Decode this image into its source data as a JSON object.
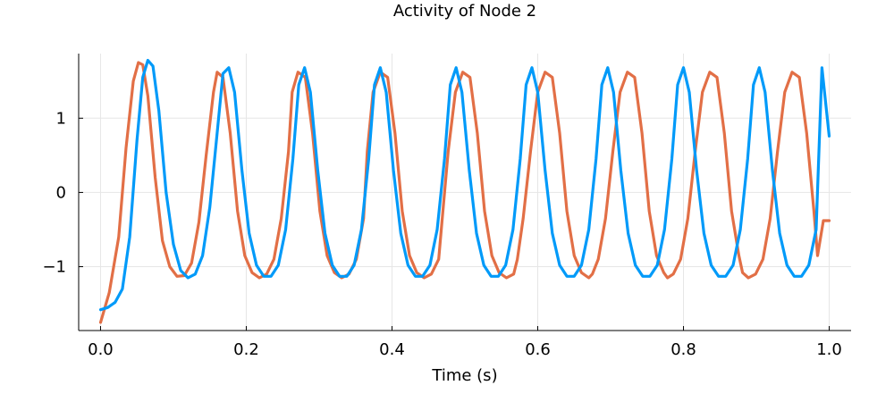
{
  "chart_data": {
    "type": "line",
    "title": "Activity of Node 2",
    "xlabel": "Time (s)",
    "ylabel": "",
    "xlim": [
      -0.03,
      1.03
    ],
    "ylim": [
      -1.86,
      1.87
    ],
    "xticks": [
      0.0,
      0.2,
      0.4,
      0.6,
      0.8,
      1.0
    ],
    "xtick_labels": [
      "0.0",
      "0.2",
      "0.4",
      "0.6",
      "0.8",
      "1.0"
    ],
    "yticks": [
      -1,
      0,
      1
    ],
    "ytick_labels": [
      "−1",
      "0",
      "1"
    ],
    "grid": true,
    "legend": "none",
    "series": [
      {
        "color": "#e26f46",
        "x": [
          0.0,
          0.012,
          0.025,
          0.035,
          0.045,
          0.052,
          0.058,
          0.065,
          0.075,
          0.085,
          0.095,
          0.105,
          0.115,
          0.125,
          0.135,
          0.145,
          0.155,
          0.16,
          0.168,
          0.178,
          0.188,
          0.198,
          0.208,
          0.218,
          0.228,
          0.238,
          0.248,
          0.258,
          0.263,
          0.271,
          0.281,
          0.291,
          0.301,
          0.311,
          0.321,
          0.331,
          0.341,
          0.351,
          0.361,
          0.366,
          0.374,
          0.384,
          0.394,
          0.404,
          0.414,
          0.424,
          0.434,
          0.444,
          0.454,
          0.464,
          0.469,
          0.477,
          0.487,
          0.497,
          0.507,
          0.517,
          0.527,
          0.537,
          0.547,
          0.557,
          0.567,
          0.572,
          0.58,
          0.59,
          0.6,
          0.61,
          0.62,
          0.63,
          0.64,
          0.65,
          0.66,
          0.67,
          0.675,
          0.683,
          0.693,
          0.703,
          0.713,
          0.723,
          0.733,
          0.743,
          0.753,
          0.763,
          0.773,
          0.778,
          0.786,
          0.796,
          0.806,
          0.816,
          0.826,
          0.836,
          0.846,
          0.856,
          0.866,
          0.876,
          0.881,
          0.889,
          0.899,
          0.909,
          0.919,
          0.929,
          0.939,
          0.949,
          0.959,
          0.969,
          0.979,
          0.984,
          0.992,
          1.0
        ],
        "y": [
          -1.75,
          -1.35,
          -0.6,
          0.6,
          1.5,
          1.75,
          1.72,
          1.3,
          0.2,
          -0.65,
          -1.0,
          -1.13,
          -1.12,
          -0.95,
          -0.4,
          0.5,
          1.35,
          1.62,
          1.55,
          0.8,
          -0.25,
          -0.85,
          -1.08,
          -1.15,
          -1.1,
          -0.9,
          -0.35,
          0.55,
          1.35,
          1.62,
          1.55,
          0.8,
          -0.25,
          -0.85,
          -1.08,
          -1.15,
          -1.1,
          -0.9,
          -0.35,
          0.55,
          1.35,
          1.62,
          1.55,
          0.8,
          -0.25,
          -0.85,
          -1.08,
          -1.15,
          -1.1,
          -0.9,
          -0.35,
          0.55,
          1.35,
          1.62,
          1.55,
          0.8,
          -0.25,
          -0.85,
          -1.08,
          -1.15,
          -1.1,
          -0.9,
          -0.35,
          0.55,
          1.35,
          1.62,
          1.55,
          0.8,
          -0.25,
          -0.85,
          -1.08,
          -1.15,
          -1.1,
          -0.9,
          -0.35,
          0.55,
          1.35,
          1.62,
          1.55,
          0.8,
          -0.25,
          -0.85,
          -1.08,
          -1.15,
          -1.1,
          -0.9,
          -0.35,
          0.55,
          1.35,
          1.62,
          1.55,
          0.8,
          -0.25,
          -0.85,
          -1.08,
          -1.15,
          -1.1,
          -0.9,
          -0.35,
          0.55,
          1.35,
          1.62,
          1.55,
          0.8,
          -0.25,
          -0.85,
          -0.38,
          -0.38
        ]
      },
      {
        "color": "#009af9",
        "x": [
          0.0,
          0.01,
          0.02,
          0.03,
          0.04,
          0.05,
          0.058,
          0.065,
          0.072,
          0.08,
          0.09,
          0.1,
          0.11,
          0.12,
          0.13,
          0.14,
          0.15,
          0.16,
          0.168,
          0.176,
          0.184,
          0.194,
          0.204,
          0.214,
          0.224,
          0.234,
          0.244,
          0.254,
          0.264,
          0.272,
          0.28,
          0.288,
          0.298,
          0.308,
          0.318,
          0.328,
          0.338,
          0.348,
          0.358,
          0.368,
          0.376,
          0.384,
          0.392,
          0.402,
          0.412,
          0.422,
          0.432,
          0.442,
          0.452,
          0.462,
          0.472,
          0.48,
          0.488,
          0.496,
          0.506,
          0.516,
          0.526,
          0.536,
          0.546,
          0.556,
          0.566,
          0.576,
          0.584,
          0.592,
          0.6,
          0.61,
          0.62,
          0.63,
          0.64,
          0.65,
          0.66,
          0.67,
          0.68,
          0.688,
          0.696,
          0.704,
          0.714,
          0.724,
          0.734,
          0.744,
          0.754,
          0.764,
          0.774,
          0.784,
          0.792,
          0.8,
          0.808,
          0.818,
          0.828,
          0.838,
          0.848,
          0.858,
          0.868,
          0.878,
          0.888,
          0.896,
          0.904,
          0.912,
          0.922,
          0.932,
          0.942,
          0.952,
          0.962,
          0.972,
          0.982,
          0.99,
          1.0
        ],
        "y": [
          -1.58,
          -1.55,
          -1.48,
          -1.3,
          -0.6,
          0.7,
          1.55,
          1.78,
          1.7,
          1.1,
          0.0,
          -0.7,
          -1.05,
          -1.15,
          -1.1,
          -0.85,
          -0.2,
          0.8,
          1.6,
          1.68,
          1.35,
          0.3,
          -0.55,
          -0.98,
          -1.13,
          -1.13,
          -0.98,
          -0.5,
          0.45,
          1.45,
          1.68,
          1.35,
          0.3,
          -0.55,
          -0.98,
          -1.13,
          -1.13,
          -0.98,
          -0.5,
          0.45,
          1.45,
          1.68,
          1.35,
          0.3,
          -0.55,
          -0.98,
          -1.13,
          -1.13,
          -0.98,
          -0.5,
          0.45,
          1.45,
          1.68,
          1.35,
          0.3,
          -0.55,
          -0.98,
          -1.13,
          -1.13,
          -0.98,
          -0.5,
          0.45,
          1.45,
          1.68,
          1.35,
          0.3,
          -0.55,
          -0.98,
          -1.13,
          -1.13,
          -0.98,
          -0.5,
          0.45,
          1.45,
          1.68,
          1.35,
          0.3,
          -0.55,
          -0.98,
          -1.13,
          -1.13,
          -0.98,
          -0.5,
          0.45,
          1.45,
          1.68,
          1.35,
          0.3,
          -0.55,
          -0.98,
          -1.13,
          -1.13,
          -0.98,
          -0.5,
          0.45,
          1.45,
          1.68,
          1.35,
          0.3,
          -0.55,
          -0.98,
          -1.13,
          -1.13,
          -0.98,
          -0.5,
          1.68,
          0.76
        ]
      }
    ]
  }
}
